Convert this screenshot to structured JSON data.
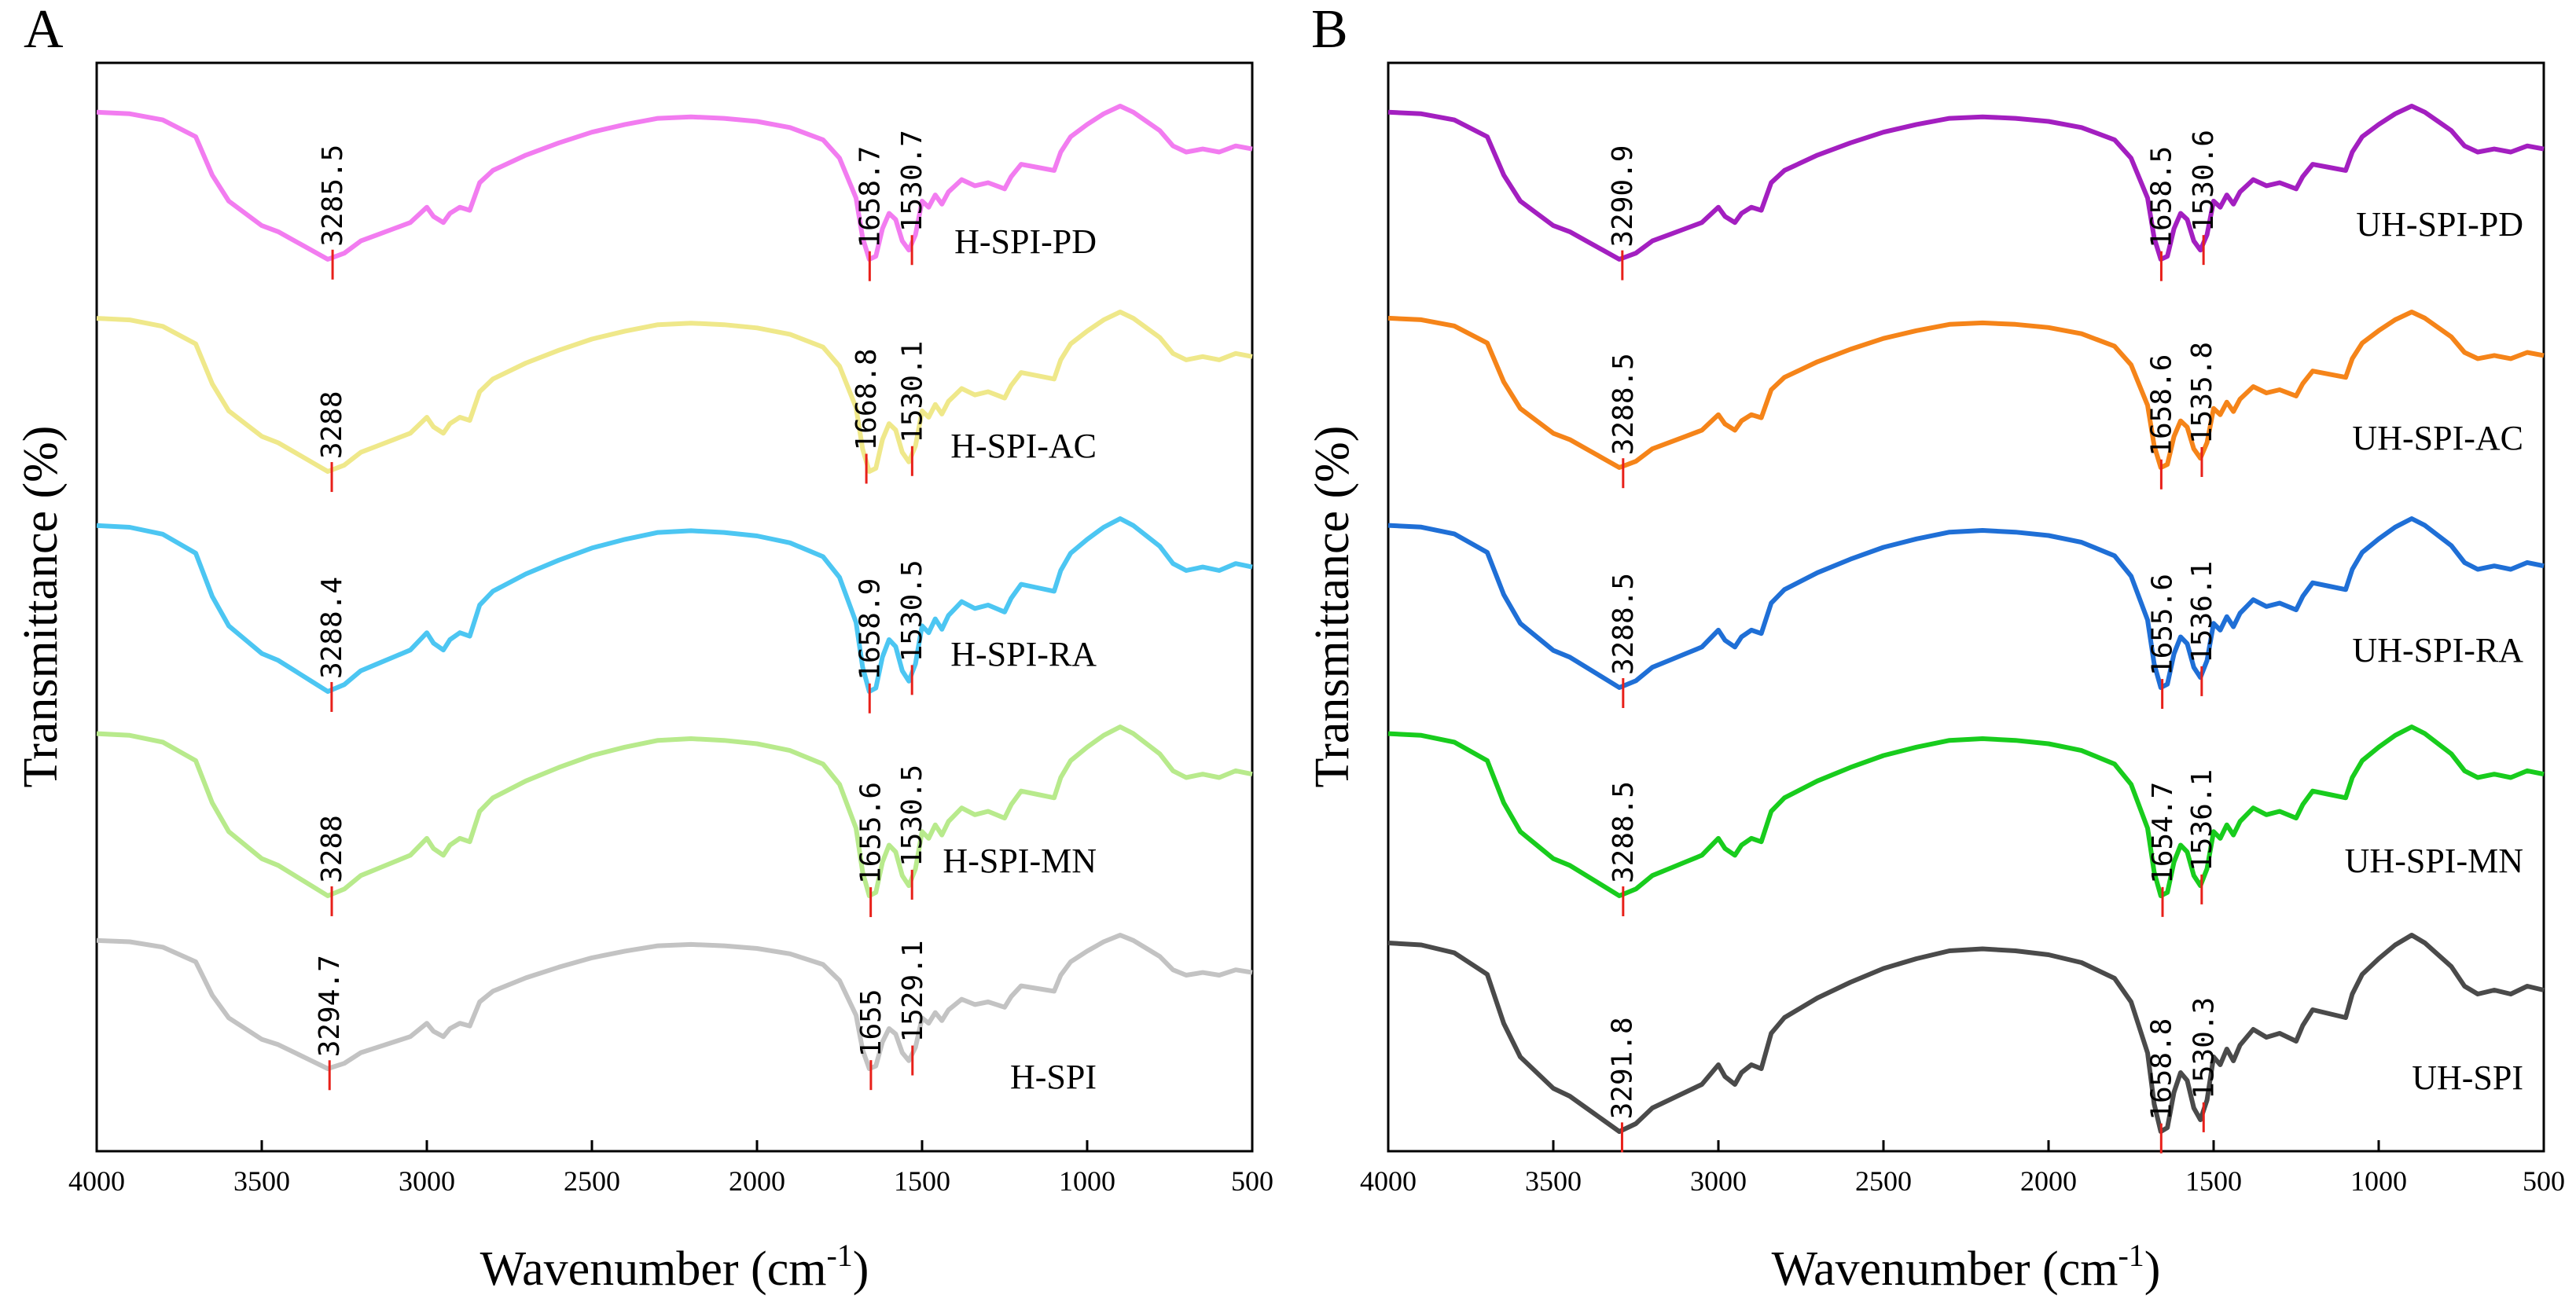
{
  "panels": [
    {
      "letter": "A",
      "ylabel": "Transmittance (%)",
      "xlabel_main": "Wavenumber (cm",
      "xlabel_sup": "-1",
      "xlabel_close": ")"
    },
    {
      "letter": "B",
      "ylabel": "Transmittance (%)",
      "xlabel_main": "Wavenumber (cm",
      "xlabel_sup": "-1",
      "xlabel_close": ")"
    }
  ],
  "chart_data": [
    {
      "type": "line",
      "panel": "A",
      "title": "",
      "xlabel": "Wavenumber (cm-1)",
      "ylabel": "Transmittance (%)",
      "xlim": [
        4000,
        500
      ],
      "x_reversed": true,
      "xticks": [
        4000,
        3500,
        3000,
        2500,
        2000,
        1500,
        1000,
        500
      ],
      "yticks_visible": false,
      "offset_stacked": true,
      "peak_marker_color": "#e8201a",
      "series": [
        {
          "name": "H-SPI-PD",
          "color": "#f27cf0",
          "label_text": "H-SPI-PD",
          "baseline": 0.35,
          "scale": 1.0,
          "peaks": [
            "3285.5",
            "1658.7",
            "1530.7"
          ]
        },
        {
          "name": "H-SPI-AC",
          "color": "#efe88a",
          "label_text": "H-SPI-AC",
          "baseline": 0.15,
          "scale": 0.95,
          "peaks": [
            "3288",
            "1668.8",
            "1530.1"
          ]
        },
        {
          "name": "H-SPI-RA",
          "color": "#4cc6f2",
          "label_text": "H-SPI-RA",
          "baseline": 0.3,
          "scale": 1.05,
          "peaks": [
            "3288.4",
            "1658.9",
            "1530.5"
          ]
        },
        {
          "name": "H-SPI-MN",
          "color": "#b8ea8c",
          "label_text": "H-SPI-MN",
          "baseline": 0.2,
          "scale": 0.95,
          "peaks": [
            "3288",
            "1655.6",
            "1530.5"
          ]
        },
        {
          "name": "H-SPI",
          "color": "#c3c3c3",
          "label_text": "H-SPI",
          "baseline": 0.25,
          "scale": 0.8,
          "peaks": [
            "3294.7",
            "1655",
            "1529.1"
          ]
        }
      ]
    },
    {
      "type": "line",
      "panel": "B",
      "title": "",
      "xlabel": "Wavenumber (cm-1)",
      "ylabel": "Transmittance (%)",
      "xlim": [
        4000,
        500
      ],
      "x_reversed": true,
      "xticks": [
        4000,
        3500,
        3000,
        2500,
        2000,
        1500,
        1000,
        500
      ],
      "yticks_visible": false,
      "offset_stacked": true,
      "peak_marker_color": "#e8201a",
      "series": [
        {
          "name": "UH-SPI-PD",
          "color": "#a31fc0",
          "label_text": "UH-SPI-PD",
          "baseline": 0.25,
          "scale": 1.0,
          "peaks": [
            "3290.9",
            "1658.5",
            "1530.6"
          ]
        },
        {
          "name": "UH-SPI-AC",
          "color": "#f58419",
          "label_text": "UH-SPI-AC",
          "baseline": 0.25,
          "scale": 1.0,
          "peaks": [
            "3288.5",
            "1658.6",
            "1535.8"
          ]
        },
        {
          "name": "UH-SPI-RA",
          "color": "#1f6fd6",
          "label_text": "UH-SPI-RA",
          "baseline": 0.2,
          "scale": 1.05,
          "peaks": [
            "3288.5",
            "1655.6",
            "1536.1"
          ]
        },
        {
          "name": "UH-SPI-MN",
          "color": "#18cc1d",
          "label_text": "UH-SPI-MN",
          "baseline": 0.25,
          "scale": 1.0,
          "peaks": [
            "3288.5",
            "1654.7",
            "1536.1"
          ]
        },
        {
          "name": "UH-SPI",
          "color": "#4a4a4a",
          "label_text": "UH-SPI",
          "baseline": 0.25,
          "scale": 1.05,
          "peaks": [
            "3291.8",
            "1658.8",
            "1530.3"
          ]
        }
      ]
    }
  ]
}
